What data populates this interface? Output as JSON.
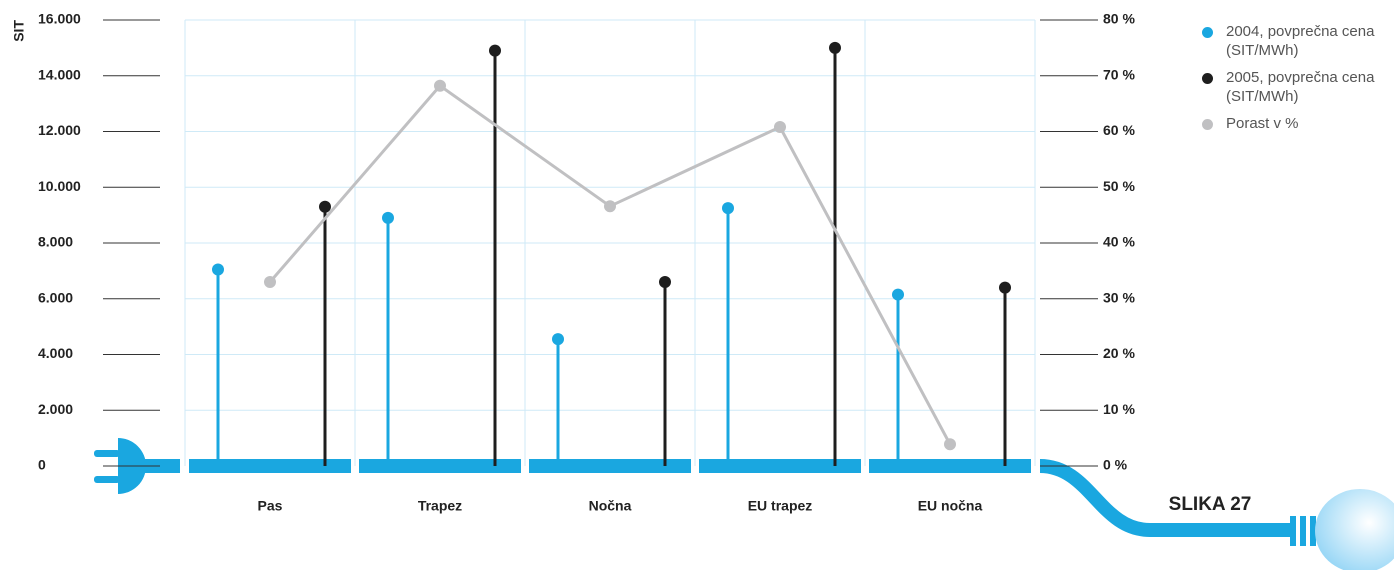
{
  "chart_data": {
    "type": "lollipop",
    "y_label": "SIT",
    "figure_label": "SLIKA 27",
    "categories": [
      "Pas",
      "Trapez",
      "Nočna",
      "EU trapez",
      "EU nočna"
    ],
    "series": [
      {
        "name": "2004, povprečna cena (SIT/MWh)",
        "color": "#1aa7e0",
        "values": [
          7050,
          8900,
          4550,
          9250,
          6150
        ]
      },
      {
        "name": "2005, povprečna cena (SIT/MWh)",
        "color": "#1e1e1e",
        "values": [
          9300,
          14900,
          6600,
          15000,
          6400
        ]
      },
      {
        "name": "Porast v %",
        "color": "#c0c0c2",
        "axis": "y2",
        "values": [
          33,
          68.2,
          46.6,
          60.8,
          3.9
        ]
      }
    ],
    "ylim": [
      0,
      16000
    ],
    "yticks": [
      0,
      {
        "value": 2000,
        "label": "2.000"
      },
      {
        "value": 4000,
        "label": "4.000"
      },
      {
        "value": 6000,
        "label": "6.000"
      },
      {
        "value": 8000,
        "label": "8.000"
      },
      {
        "value": 10000,
        "label": "10.000"
      },
      {
        "value": 12000,
        "label": "12.000"
      },
      {
        "value": 14000,
        "label": "14.000"
      },
      {
        "value": 16000,
        "label": "16.000"
      }
    ],
    "y2lim": [
      0,
      80
    ],
    "y2ticks": [
      {
        "value": 0,
        "label": "0 %"
      },
      {
        "value": 10,
        "label": "10 %"
      },
      {
        "value": 20,
        "label": "20 %"
      },
      {
        "value": 30,
        "label": "30 %"
      },
      {
        "value": 40,
        "label": "40 %"
      },
      {
        "value": 50,
        "label": "50 %"
      },
      {
        "value": 60,
        "label": "60 %"
      },
      {
        "value": 70,
        "label": "70 %"
      },
      {
        "value": 80,
        "label": "80 %"
      }
    ],
    "grid": true
  }
}
